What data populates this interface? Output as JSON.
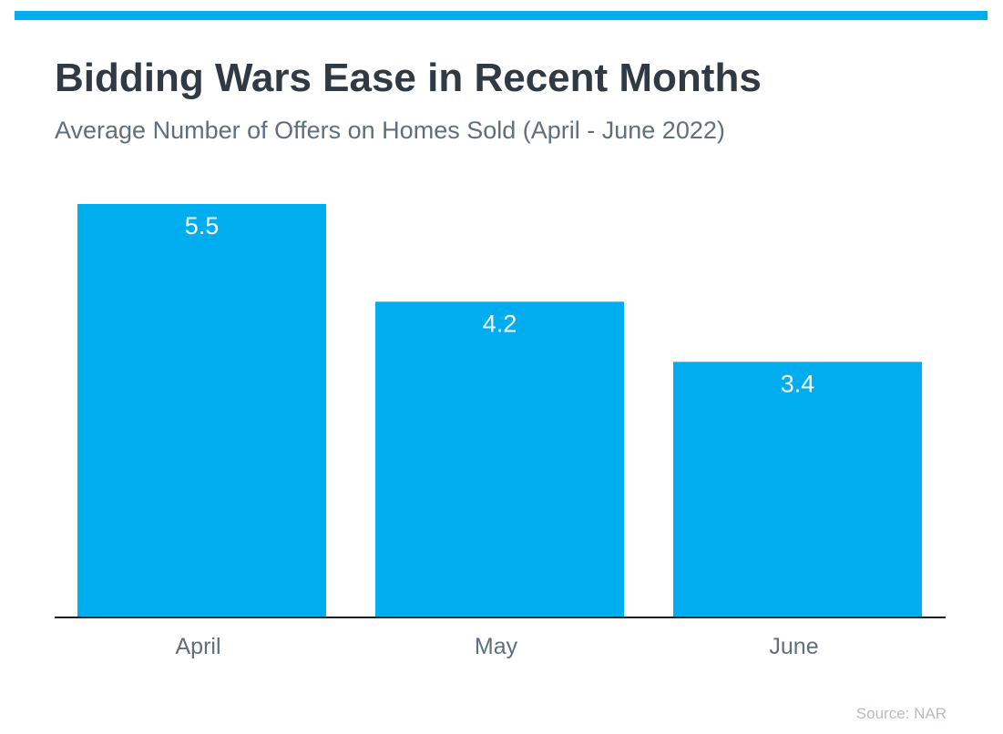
{
  "colors": {
    "accent": "#00aeef",
    "bar": "#00aeef",
    "title": "#2f3a45",
    "subtitle": "#5e6f7e",
    "tick": "#5e6f7e",
    "axis": "#1e1e1e",
    "source": "#b5bcc3"
  },
  "header": {
    "title": "Bidding Wars Ease in Recent Months",
    "subtitle": "Average Number of Offers on Homes Sold (April - June 2022)"
  },
  "chart_data": {
    "type": "bar",
    "categories": [
      "April",
      "May",
      "June"
    ],
    "values": [
      5.5,
      4.2,
      3.4
    ],
    "value_labels": [
      "5.5",
      "4.2",
      "3.4"
    ],
    "title": "Bidding Wars Ease in Recent Months",
    "subtitle": "Average Number of Offers on Homes Sold (April - June 2022)",
    "ylim": [
      0,
      5.5
    ],
    "grid": false,
    "legend": "none"
  },
  "footer": {
    "source": "Source: NAR"
  }
}
